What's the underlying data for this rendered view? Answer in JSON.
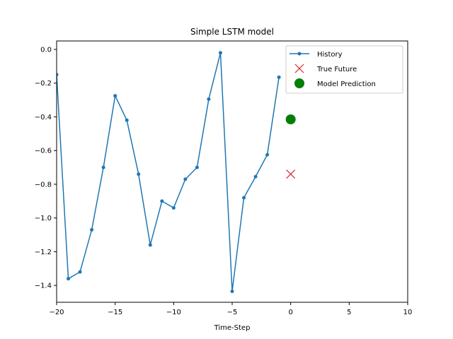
{
  "chart_data": {
    "type": "line",
    "title": "Simple LSTM model",
    "xlabel": "Time-Step",
    "ylabel": "",
    "xlim": [
      -20,
      10
    ],
    "ylim": [
      -1.5,
      0.05
    ],
    "xticks": [
      -20,
      -15,
      -10,
      -5,
      0,
      5,
      10
    ],
    "xtick_labels": [
      "−20",
      "−15",
      "−10",
      "−5",
      "0",
      "5",
      "10"
    ],
    "yticks": [
      0.0,
      -0.2,
      -0.4,
      -0.6,
      -0.8,
      -1.0,
      -1.2,
      -1.4
    ],
    "ytick_labels": [
      "0.0",
      "−0.2",
      "−0.4",
      "−0.6",
      "−0.8",
      "−1.0",
      "−1.2",
      "−1.4"
    ],
    "grid": false,
    "legend_position": "top-right",
    "series": [
      {
        "name": "History",
        "kind": "line-with-markers",
        "color": "#1f77b4",
        "x": [
          -20,
          -19,
          -18,
          -17,
          -16,
          -15,
          -14,
          -13,
          -12,
          -11,
          -10,
          -9,
          -8,
          -7,
          -6,
          -5,
          -4,
          -3,
          -2,
          -1
        ],
        "y": [
          -0.15,
          -1.36,
          -1.32,
          -1.07,
          -0.7,
          -0.275,
          -0.42,
          -0.74,
          -1.16,
          -0.9,
          -0.94,
          -0.77,
          -0.7,
          -0.295,
          -0.02,
          -1.435,
          -0.88,
          -0.755,
          -0.625,
          -0.165
        ]
      },
      {
        "name": "True Future",
        "kind": "x-marker",
        "color": "#d62728",
        "x": [
          0
        ],
        "y": [
          -0.74
        ]
      },
      {
        "name": "Model Prediction",
        "kind": "circle-marker",
        "color": "#008000",
        "x": [
          0
        ],
        "y": [
          -0.415
        ]
      }
    ]
  }
}
